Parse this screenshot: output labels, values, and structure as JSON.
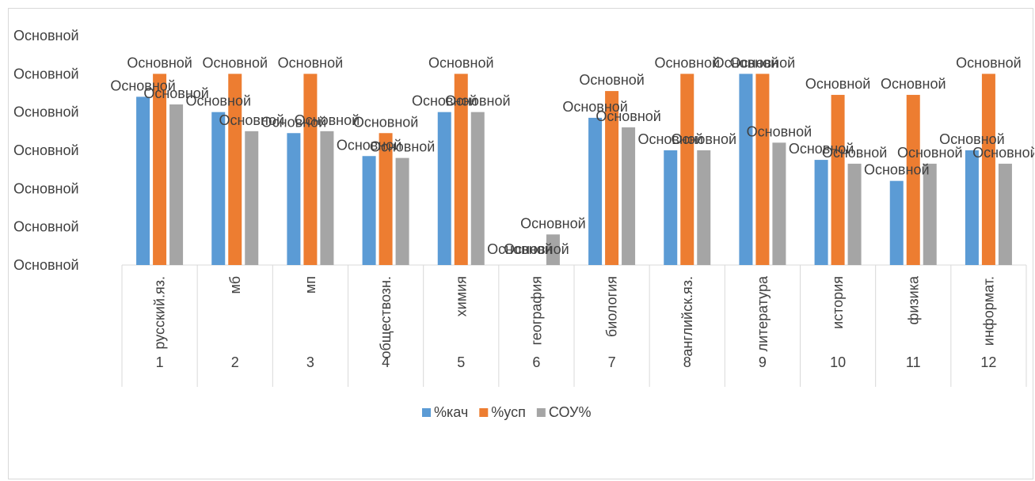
{
  "chart_data": {
    "type": "bar",
    "categories": [
      {
        "num": "1",
        "name": "русский.яз."
      },
      {
        "num": "2",
        "name": "мб"
      },
      {
        "num": "3",
        "name": "мп"
      },
      {
        "num": "4",
        "name": "обществозн."
      },
      {
        "num": "5",
        "name": "химия"
      },
      {
        "num": "6",
        "name": "география"
      },
      {
        "num": "7",
        "name": "биология"
      },
      {
        "num": "8",
        "name": "английск.яз."
      },
      {
        "num": "9",
        "name": "литература"
      },
      {
        "num": "10",
        "name": "история"
      },
      {
        "num": "11",
        "name": "физика"
      },
      {
        "num": "12",
        "name": "информат."
      }
    ],
    "series": [
      {
        "name": "%кач",
        "color": "#5b9bd5",
        "values": [
          88,
          80,
          69,
          57,
          80,
          0,
          77,
          60,
          100,
          55,
          44,
          60
        ]
      },
      {
        "name": "%усп",
        "color": "#ed7d31",
        "values": [
          100,
          100,
          100,
          69,
          100,
          0,
          91,
          100,
          100,
          89,
          89,
          100
        ]
      },
      {
        "name": "СОУ%",
        "color": "#a5a5a5",
        "values": [
          84,
          70,
          70,
          56,
          80,
          16,
          72,
          60,
          64,
          53,
          53,
          53
        ]
      }
    ],
    "ylim": [
      0,
      120
    ],
    "ytick_labels": [
      "Основной",
      "Основной",
      "Основной",
      "Основной",
      "Основной",
      "Основной",
      "Основной"
    ],
    "data_label_text": "Основной",
    "grid": false,
    "legend_position": "bottom"
  }
}
